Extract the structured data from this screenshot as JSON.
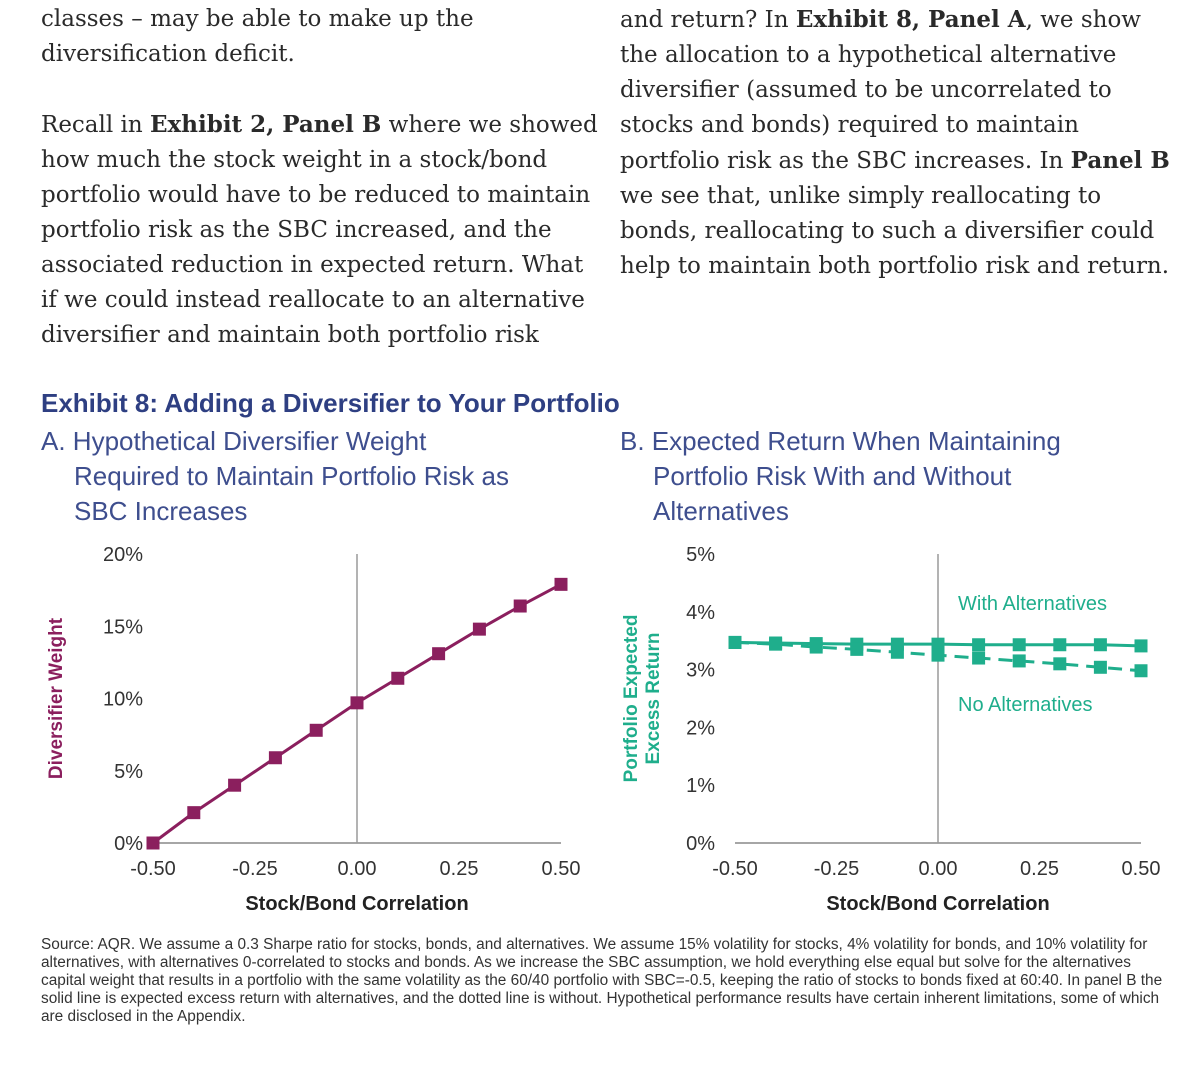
{
  "text": {
    "left_para1": "classes – may be able to make up the diversification deficit.",
    "left_para2_pre": "Recall in ",
    "left_para2_bold": "Exhibit 2, Panel B",
    "left_para2_post": " where we showed how much the stock weight in a stock/bond portfolio would have to be reduced to maintain portfolio risk as the SBC increased, and the associated reduction in expected return. What if we could instead reallocate to an alternative diversifier and maintain both portfolio risk",
    "right_pre": "and return? In ",
    "right_bold1": "Exhibit 8, Panel A",
    "right_mid": ", we show the allocation to a hypothetical alternative diversifier (assumed to be uncorrelated to stocks and bonds) required to maintain portfolio risk as the SBC increases. In ",
    "right_bold2": "Panel B",
    "right_post": " we see that, unlike simply reallocating to bonds, reallocating to such a diversifier could help to maintain both portfolio risk and return."
  },
  "exhibit_title": "Exhibit 8: Adding a Diversifier to Your Portfolio",
  "panel_a_title": {
    "line1": "A. Hypothetical Diversifier Weight",
    "line2": "Required to Maintain Portfolio Risk as",
    "line3": "SBC Increases"
  },
  "panel_b_title": {
    "line1": "B. Expected Return When Maintaining",
    "line2": "Portfolio Risk With and Without",
    "line3": "Alternatives"
  },
  "footnote": "Source: AQR. We assume a 0.3 Sharpe ratio for stocks, bonds, and alternatives. We assume 15% volatility for stocks, 4% volatility for bonds, and 10% volatility for alternatives, with alternatives 0-correlated to stocks and bonds. As we increase the SBC assumption, we hold everything else equal but solve for the alternatives capital weight that results in a portfolio with the same volatility as the 60/40 portfolio with SBC=-0.5, keeping the ratio of stocks to bonds fixed at 60:40. In panel B the solid line is expected excess return with alternatives, and the dotted line is without. Hypothetical performance results have certain inherent limitations, some of which are disclosed in the Appendix.",
  "chart_data": [
    {
      "type": "line",
      "xlabel": "Stock/Bond Correlation",
      "ylabel": "Diversifier Weight",
      "xlim": [
        -0.5,
        0.5
      ],
      "ylim": [
        0,
        20
      ],
      "xticks": [
        "-0.50",
        "-0.25",
        "0.00",
        "0.25",
        "0.50"
      ],
      "yticks": [
        "0%",
        "5%",
        "10%",
        "15%",
        "20%"
      ],
      "x": [
        -0.5,
        -0.4,
        -0.3,
        -0.2,
        -0.1,
        0.0,
        0.1,
        0.2,
        0.3,
        0.4,
        0.5
      ],
      "series": [
        {
          "values": [
            0.0,
            2.1,
            4.0,
            5.9,
            7.8,
            9.7,
            11.4,
            13.1,
            14.8,
            16.4,
            17.9
          ],
          "color": "#8b1f5e",
          "style": "solid"
        }
      ],
      "vertical_reference_x": 0.0
    },
    {
      "type": "line",
      "xlabel": "Stock/Bond Correlation",
      "ylabel": "Portfolio Expected Excess Return",
      "xlim": [
        -0.5,
        0.5
      ],
      "ylim": [
        0,
        5
      ],
      "xticks": [
        "-0.50",
        "-0.25",
        "0.00",
        "0.25",
        "0.50"
      ],
      "yticks": [
        "0%",
        "1%",
        "2%",
        "3%",
        "4%",
        "5%"
      ],
      "x": [
        -0.5,
        -0.4,
        -0.3,
        -0.2,
        -0.1,
        0.0,
        0.1,
        0.2,
        0.3,
        0.4,
        0.5
      ],
      "series": [
        {
          "name": "With Alternatives",
          "values": [
            3.47,
            3.46,
            3.45,
            3.44,
            3.44,
            3.44,
            3.43,
            3.43,
            3.43,
            3.43,
            3.41
          ],
          "color": "#1fae8c",
          "style": "solid"
        },
        {
          "name": "No Alternatives",
          "values": [
            3.47,
            3.44,
            3.39,
            3.35,
            3.3,
            3.25,
            3.2,
            3.15,
            3.1,
            3.04,
            2.98
          ],
          "color": "#1fae8c",
          "style": "dashed"
        }
      ],
      "vertical_reference_x": 0.0
    }
  ]
}
